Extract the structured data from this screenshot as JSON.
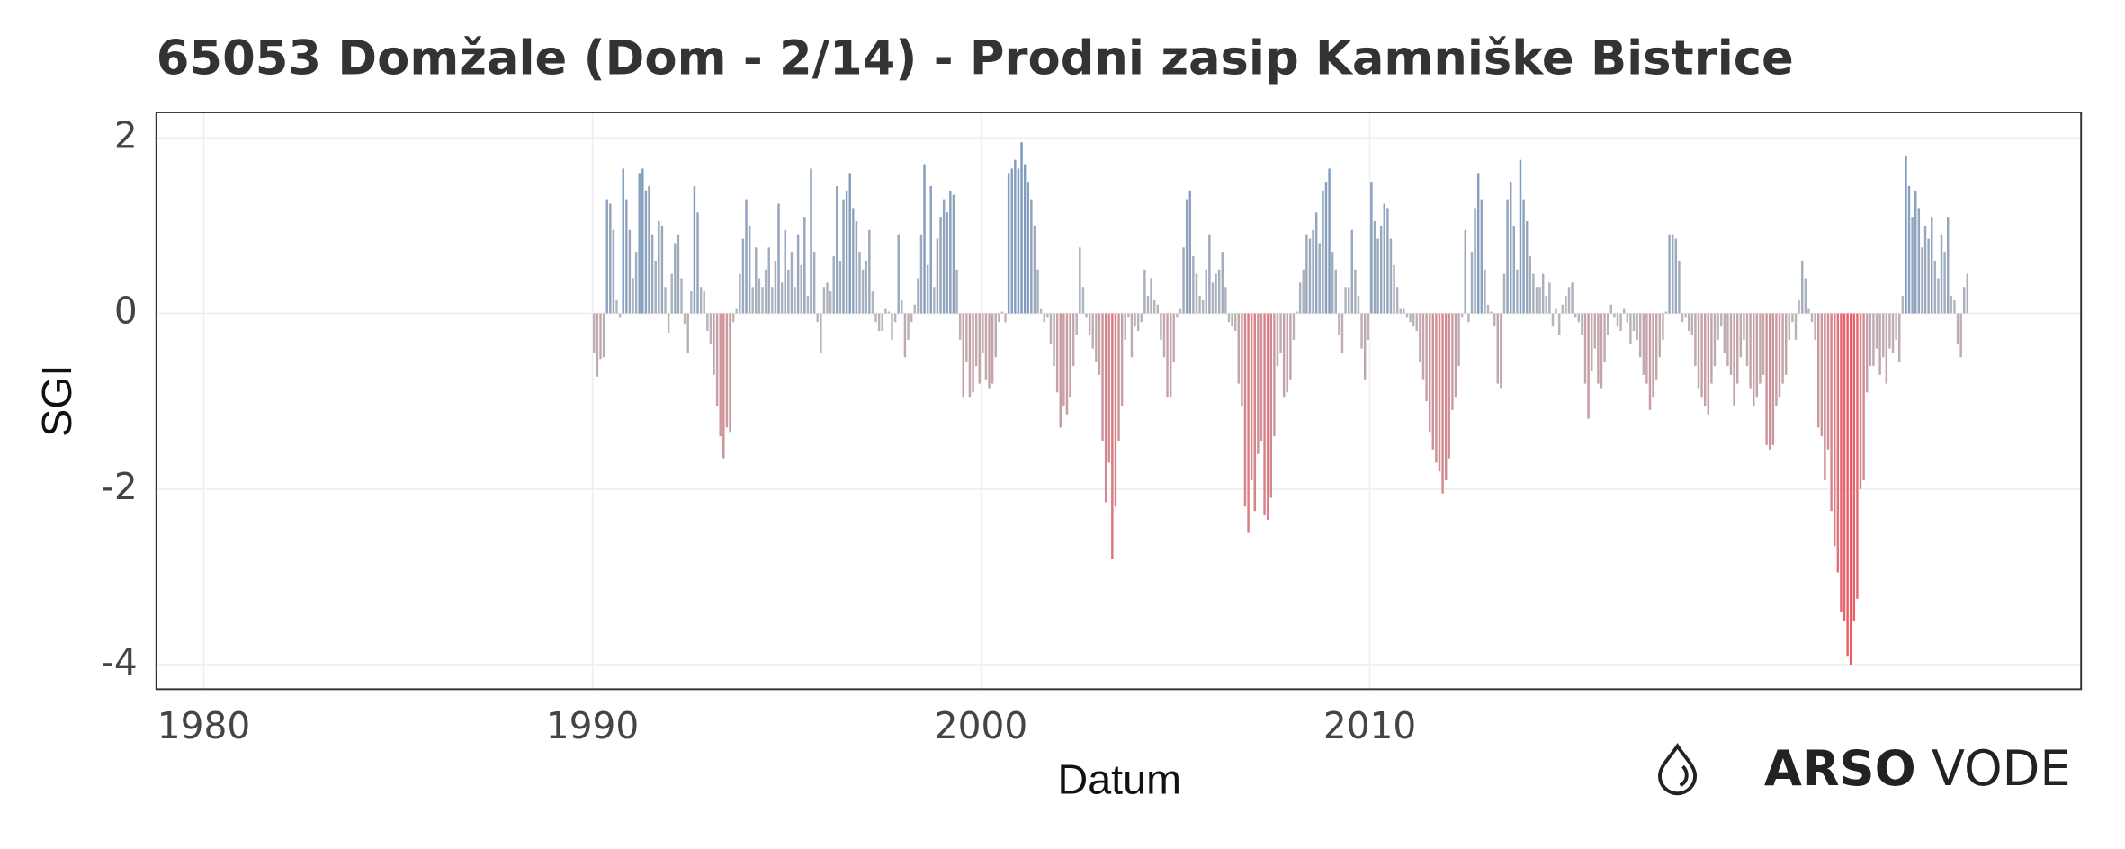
{
  "chart_data": {
    "type": "bar",
    "title": "65053 Domžale (Dom - 2/14) - Prodni zasip Kamniške Bistrice",
    "x_label": "Datum",
    "y_label": "SGI",
    "logo": {
      "bold": "ARSO",
      "light": "VODE"
    },
    "xlim": [
      1978.78,
      2028.3
    ],
    "xticks": [
      1980,
      1990,
      2000,
      2010
    ],
    "ylim": [
      -4.28,
      2.29
    ],
    "yticks": [
      2,
      0,
      -2,
      -4
    ],
    "grid": true,
    "colors": {
      "positive": "#6f93c0",
      "negative": "#f4525c",
      "neutral": "#b8b8bc"
    },
    "x": [
      "1990-01",
      "1990-02",
      "1990-03",
      "1990-04",
      "1990-05",
      "1990-06",
      "1990-07",
      "1990-08",
      "1990-09",
      "1990-10",
      "1990-11",
      "1990-12",
      "1991-01",
      "1991-02",
      "1991-03",
      "1991-04",
      "1991-05",
      "1991-06",
      "1991-07",
      "1991-08",
      "1991-09",
      "1991-10",
      "1991-11",
      "1991-12",
      "1992-01",
      "1992-02",
      "1992-03",
      "1992-04",
      "1992-05",
      "1992-06",
      "1992-07",
      "1992-08",
      "1992-09",
      "1992-10",
      "1992-11",
      "1992-12",
      "1993-01",
      "1993-02",
      "1993-03",
      "1993-04",
      "1993-05",
      "1993-06",
      "1993-07",
      "1993-08",
      "1993-09",
      "1993-10",
      "1993-11",
      "1993-12",
      "1994-01",
      "1994-02",
      "1994-03",
      "1994-04",
      "1994-05",
      "1994-06",
      "1994-07",
      "1994-08",
      "1994-09",
      "1994-10",
      "1994-11",
      "1994-12",
      "1995-01",
      "1995-02",
      "1995-03",
      "1995-04",
      "1995-05",
      "1995-06",
      "1995-07",
      "1995-08",
      "1995-09",
      "1995-10",
      "1995-11",
      "1995-12",
      "1996-01",
      "1996-02",
      "1996-03",
      "1996-04",
      "1996-05",
      "1996-06",
      "1996-07",
      "1996-08",
      "1996-09",
      "1996-10",
      "1996-11",
      "1996-12",
      "1997-01",
      "1997-02",
      "1997-03",
      "1997-04",
      "1997-05",
      "1997-06",
      "1997-07",
      "1997-08",
      "1997-09",
      "1997-10",
      "1997-11",
      "1997-12",
      "1998-01",
      "1998-02",
      "1998-03",
      "1998-04",
      "1998-05",
      "1998-06",
      "1998-07",
      "1998-08",
      "1998-09",
      "1998-10",
      "1998-11",
      "1998-12",
      "1999-01",
      "1999-02",
      "1999-03",
      "1999-04",
      "1999-05",
      "1999-06",
      "1999-07",
      "1999-08",
      "1999-09",
      "1999-10",
      "1999-11",
      "1999-12",
      "2000-01",
      "2000-02",
      "2000-03",
      "2000-04",
      "2000-05",
      "2000-06",
      "2000-07",
      "2000-08",
      "2000-09",
      "2000-10",
      "2000-11",
      "2000-12",
      "2001-01",
      "2001-02",
      "2001-03",
      "2001-04",
      "2001-05",
      "2001-06",
      "2001-07",
      "2001-08",
      "2001-09",
      "2001-10",
      "2001-11",
      "2001-12",
      "2002-01",
      "2002-02",
      "2002-03",
      "2002-04",
      "2002-05",
      "2002-06",
      "2002-07",
      "2002-08",
      "2002-09",
      "2002-10",
      "2002-11",
      "2002-12",
      "2003-01",
      "2003-02",
      "2003-03",
      "2003-04",
      "2003-05",
      "2003-06",
      "2003-07",
      "2003-08",
      "2003-09",
      "2003-10",
      "2003-11",
      "2003-12",
      "2004-01",
      "2004-02",
      "2004-03",
      "2004-04",
      "2004-05",
      "2004-06",
      "2004-07",
      "2004-08",
      "2004-09",
      "2004-10",
      "2004-11",
      "2004-12",
      "2005-01",
      "2005-02",
      "2005-03",
      "2005-04",
      "2005-05",
      "2005-06",
      "2005-07",
      "2005-08",
      "2005-09",
      "2005-10",
      "2005-11",
      "2005-12",
      "2006-01",
      "2006-02",
      "2006-03",
      "2006-04",
      "2006-05",
      "2006-06",
      "2006-07",
      "2006-08",
      "2006-09",
      "2006-10",
      "2006-11",
      "2006-12",
      "2007-01",
      "2007-02",
      "2007-03",
      "2007-04",
      "2007-05",
      "2007-06",
      "2007-07",
      "2007-08",
      "2007-09",
      "2007-10",
      "2007-11",
      "2007-12",
      "2008-01",
      "2008-02",
      "2008-03",
      "2008-04",
      "2008-05",
      "2008-06",
      "2008-07",
      "2008-08",
      "2008-09",
      "2008-10",
      "2008-11",
      "2008-12",
      "2009-01",
      "2009-02",
      "2009-03",
      "2009-04",
      "2009-05",
      "2009-06",
      "2009-07",
      "2009-08",
      "2009-09",
      "2009-10",
      "2009-11",
      "2009-12",
      "2010-01",
      "2010-02",
      "2010-03",
      "2010-04",
      "2010-05",
      "2010-06",
      "2010-07",
      "2010-08",
      "2010-09",
      "2010-10",
      "2010-11",
      "2010-12",
      "2011-01",
      "2011-02",
      "2011-03",
      "2011-04",
      "2011-05",
      "2011-06",
      "2011-07",
      "2011-08",
      "2011-09",
      "2011-10",
      "2011-11",
      "2011-12",
      "2012-01",
      "2012-02",
      "2012-03",
      "2012-04",
      "2012-05",
      "2012-06",
      "2012-07",
      "2012-08",
      "2012-09",
      "2012-10",
      "2012-11",
      "2012-12",
      "2013-01",
      "2013-02",
      "2013-03",
      "2013-04",
      "2013-05",
      "2013-06",
      "2013-07",
      "2013-08",
      "2013-09",
      "2013-10",
      "2013-11",
      "2013-12",
      "2014-01",
      "2014-02",
      "2014-03",
      "2014-04",
      "2014-05",
      "2014-06",
      "2014-07",
      "2014-08",
      "2014-09",
      "2014-10",
      "2014-11",
      "2014-12",
      "2015-01",
      "2015-02",
      "2015-03",
      "2015-04",
      "2015-05",
      "2015-06",
      "2015-07",
      "2015-08",
      "2015-09",
      "2015-10",
      "2015-11",
      "2015-12",
      "2016-01",
      "2016-02",
      "2016-03",
      "2016-04",
      "2016-05",
      "2016-06",
      "2016-07",
      "2016-08",
      "2016-09",
      "2016-10",
      "2016-11",
      "2016-12",
      "2017-01",
      "2017-02",
      "2017-03",
      "2017-04",
      "2017-05",
      "2017-06",
      "2017-07",
      "2017-08",
      "2017-09",
      "2017-10",
      "2017-11",
      "2017-12",
      "2018-01",
      "2018-02",
      "2018-03",
      "2018-04",
      "2018-05",
      "2018-06",
      "2018-07",
      "2018-08",
      "2018-09",
      "2018-10",
      "2018-11",
      "2018-12",
      "2019-01",
      "2019-02",
      "2019-03",
      "2019-04",
      "2019-05",
      "2019-06",
      "2019-07",
      "2019-08",
      "2019-09",
      "2019-10",
      "2019-11",
      "2019-12",
      "2020-01",
      "2020-02",
      "2020-03",
      "2020-04",
      "2020-05",
      "2020-06",
      "2020-07",
      "2020-08",
      "2020-09",
      "2020-10",
      "2020-11",
      "2020-12",
      "2021-01",
      "2021-02",
      "2021-03",
      "2021-04",
      "2021-05",
      "2021-06",
      "2021-07",
      "2021-08",
      "2021-09",
      "2021-10",
      "2021-11",
      "2021-12",
      "2022-01",
      "2022-02",
      "2022-03",
      "2022-04",
      "2022-05",
      "2022-06",
      "2022-07",
      "2022-08",
      "2022-09",
      "2022-10",
      "2022-11",
      "2022-12",
      "2023-01",
      "2023-02",
      "2023-03",
      "2023-04",
      "2023-05",
      "2023-06",
      "2023-07",
      "2023-08",
      "2023-09",
      "2023-10",
      "2023-11",
      "2023-12",
      "2024-01",
      "2024-02",
      "2024-03",
      "2024-04",
      "2024-05",
      "2024-06",
      "2024-07",
      "2024-08",
      "2024-09",
      "2024-10",
      "2024-11",
      "2024-12",
      "2025-01",
      "2025-02",
      "2025-03",
      "2025-04",
      "2025-05"
    ],
    "values": [
      -0.45,
      -0.72,
      -0.52,
      -0.5,
      1.3,
      1.25,
      0.95,
      0.15,
      -0.05,
      1.65,
      1.3,
      0.95,
      0.4,
      0.7,
      1.6,
      1.65,
      1.4,
      1.45,
      0.9,
      0.6,
      1.05,
      1.0,
      0.3,
      -0.22,
      0.45,
      0.8,
      0.9,
      0.4,
      -0.12,
      -0.45,
      0.25,
      1.45,
      1.15,
      0.3,
      0.25,
      -0.2,
      -0.35,
      -0.7,
      -1.05,
      -1.4,
      -1.65,
      -1.3,
      -1.35,
      -0.1,
      0.05,
      0.45,
      0.85,
      1.3,
      1.0,
      0.3,
      0.75,
      0.4,
      0.3,
      0.5,
      0.75,
      0.3,
      0.6,
      1.25,
      0.35,
      0.95,
      0.5,
      0.7,
      0.3,
      0.9,
      0.55,
      1.1,
      0.2,
      1.65,
      0.7,
      -0.1,
      -0.45,
      0.3,
      0.35,
      0.25,
      0.65,
      1.45,
      0.6,
      1.3,
      1.4,
      1.6,
      1.2,
      1.05,
      0.7,
      0.5,
      0.6,
      0.95,
      0.25,
      -0.1,
      -0.2,
      -0.2,
      0.05,
      0.02,
      -0.3,
      -0.1,
      0.9,
      0.15,
      -0.5,
      -0.3,
      -0.1,
      0.1,
      0.4,
      0.9,
      1.7,
      0.55,
      1.45,
      0.3,
      0.85,
      1.1,
      1.3,
      1.15,
      1.4,
      1.35,
      0.5,
      -0.3,
      -0.95,
      -0.55,
      -0.95,
      -0.9,
      -0.6,
      -0.8,
      -0.45,
      -0.75,
      -0.85,
      -0.8,
      -0.5,
      -0.1,
      0.02,
      -0.1,
      1.6,
      1.65,
      1.75,
      1.65,
      1.95,
      1.7,
      1.5,
      1.3,
      1.0,
      0.5,
      0.05,
      -0.1,
      -0.05,
      -0.35,
      -0.6,
      -0.9,
      -1.3,
      -1.05,
      -1.15,
      -0.95,
      -0.6,
      -0.25,
      0.75,
      0.3,
      -0.05,
      -0.25,
      -0.4,
      -0.55,
      -0.7,
      -1.45,
      -2.15,
      -1.7,
      -2.8,
      -2.2,
      -1.45,
      -1.05,
      -0.3,
      -0.05,
      -0.5,
      -0.15,
      -0.2,
      -0.1,
      0.5,
      0.2,
      0.4,
      0.15,
      0.1,
      -0.3,
      -0.5,
      -0.95,
      -0.95,
      -0.55,
      -0.05,
      0.05,
      0.75,
      1.3,
      1.4,
      0.65,
      0.45,
      0.2,
      0.15,
      0.5,
      0.9,
      0.35,
      0.45,
      0.5,
      0.7,
      0.3,
      -0.1,
      -0.15,
      -0.2,
      -0.8,
      -1.05,
      -2.2,
      -2.5,
      -1.9,
      -2.25,
      -1.6,
      -1.45,
      -2.3,
      -2.35,
      -2.1,
      -1.4,
      -0.6,
      -0.45,
      -0.95,
      -0.9,
      -0.75,
      -0.3,
      0.02,
      0.35,
      0.5,
      0.9,
      0.85,
      0.95,
      1.15,
      0.8,
      1.4,
      1.5,
      1.65,
      0.7,
      0.5,
      -0.25,
      -0.45,
      0.3,
      0.3,
      0.95,
      0.5,
      0.2,
      -0.4,
      -0.75,
      -0.3,
      1.5,
      1.05,
      0.85,
      1.0,
      1.25,
      1.2,
      0.85,
      0.55,
      0.3,
      0.05,
      0.05,
      -0.05,
      -0.1,
      -0.15,
      -0.2,
      -0.55,
      -0.75,
      -1.0,
      -1.35,
      -1.55,
      -1.7,
      -1.8,
      -2.05,
      -1.9,
      -1.65,
      -1.1,
      -0.95,
      -0.6,
      -0.05,
      0.95,
      -0.1,
      0.7,
      1.2,
      1.6,
      1.3,
      0.5,
      0.1,
      0.02,
      -0.15,
      -0.8,
      -0.85,
      0.45,
      1.3,
      1.5,
      1.0,
      0.5,
      1.75,
      1.3,
      1.05,
      0.65,
      0.45,
      0.3,
      0.3,
      0.45,
      0.2,
      0.35,
      -0.15,
      0.05,
      -0.25,
      0.1,
      0.2,
      0.3,
      0.35,
      -0.05,
      -0.1,
      -0.25,
      -0.8,
      -1.2,
      -0.65,
      -0.4,
      -0.8,
      -0.85,
      -0.55,
      -0.25,
      0.1,
      -0.05,
      -0.15,
      -0.2,
      0.05,
      -0.1,
      -0.35,
      -0.2,
      -0.3,
      -0.5,
      -0.7,
      -0.8,
      -1.1,
      -0.95,
      -0.75,
      -0.5,
      -0.3,
      0.02,
      0.9,
      0.9,
      0.85,
      0.6,
      -0.1,
      -0.05,
      -0.2,
      -0.25,
      -0.6,
      -0.85,
      -0.95,
      -1.05,
      -1.15,
      -0.8,
      -0.6,
      -0.3,
      -0.15,
      -0.45,
      -0.6,
      -0.7,
      -1.05,
      -0.8,
      -0.5,
      -0.3,
      -0.6,
      -0.85,
      -1.05,
      -0.95,
      -0.8,
      -0.7,
      -1.5,
      -1.55,
      -1.5,
      -1.05,
      -0.95,
      -0.8,
      -0.7,
      -0.3,
      -0.1,
      -0.3,
      0.15,
      0.6,
      0.4,
      0.05,
      -0.1,
      -0.3,
      -1.3,
      -1.4,
      -1.9,
      -1.55,
      -2.25,
      -2.65,
      -2.95,
      -3.4,
      -3.5,
      -3.9,
      -4.0,
      -3.5,
      -3.25,
      -2.0,
      -1.9,
      -0.9,
      -0.6,
      -0.6,
      -0.4,
      -0.7,
      -0.5,
      -0.8,
      -0.4,
      -0.45,
      -0.3,
      -0.55,
      0.2,
      1.8,
      1.45,
      1.1,
      1.4,
      1.2,
      0.75,
      1.0,
      0.85,
      1.1,
      0.6,
      0.4,
      0.9,
      0.7,
      1.1,
      0.2,
      0.15,
      -0.35,
      -0.5,
      0.3,
      0.45
    ]
  }
}
